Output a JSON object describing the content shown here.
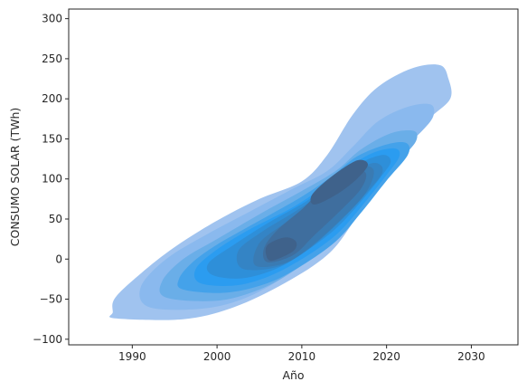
{
  "chart_data": {
    "type": "kde-contour",
    "title": "",
    "xlabel": "Año",
    "ylabel": "CONSUMO SOLAR (TWh)",
    "xlim": [
      1982.5,
      2035.5
    ],
    "ylim": [
      -107,
      312
    ],
    "xticks": [
      1990,
      2000,
      2010,
      2020,
      2030
    ],
    "yticks": [
      -100,
      -50,
      0,
      50,
      100,
      150,
      200,
      250,
      300
    ],
    "grid": false,
    "legend": "none",
    "fill_color": "#1f9bf0",
    "levels": [
      {
        "level": 1,
        "color": "#a0c3ef",
        "outline": [
          [
            1988,
            -74
          ],
          [
            1996,
            -75
          ],
          [
            2002,
            -60
          ],
          [
            2008,
            -30
          ],
          [
            2013,
            5
          ],
          [
            2016,
            45
          ],
          [
            2019,
            95
          ],
          [
            2022,
            140
          ],
          [
            2025,
            175
          ],
          [
            2027.5,
            200
          ],
          [
            2027.3,
            225
          ],
          [
            2026.3,
            242
          ],
          [
            2023,
            238
          ],
          [
            2019,
            215
          ],
          [
            2016,
            180
          ],
          [
            2013,
            130
          ],
          [
            2010,
            97
          ],
          [
            2005,
            75
          ],
          [
            2000,
            48
          ],
          [
            1995,
            15
          ],
          [
            1991,
            -18
          ],
          [
            1988,
            -48
          ],
          [
            1987.7,
            -66
          ]
        ]
      },
      {
        "level": 2,
        "color": "#8ab9ee",
        "outline": [
          [
            1992,
            -60
          ],
          [
            1998,
            -62
          ],
          [
            2003,
            -50
          ],
          [
            2008,
            -22
          ],
          [
            2012,
            10
          ],
          [
            2015,
            45
          ],
          [
            2018,
            88
          ],
          [
            2021,
            128
          ],
          [
            2024,
            158
          ],
          [
            2025.5,
            178
          ],
          [
            2025.2,
            193
          ],
          [
            2022.5,
            190
          ],
          [
            2019,
            172
          ],
          [
            2016,
            140
          ],
          [
            2013,
            110
          ],
          [
            2009,
            88
          ],
          [
            2004,
            60
          ],
          [
            1999,
            32
          ],
          [
            1994,
            0
          ],
          [
            1991,
            -35
          ]
        ]
      },
      {
        "level": 3,
        "color": "#6aaee8",
        "outline": [
          [
            1994,
            -48
          ],
          [
            2000,
            -52
          ],
          [
            2005,
            -38
          ],
          [
            2009,
            -15
          ],
          [
            2013,
            15
          ],
          [
            2016,
            50
          ],
          [
            2019,
            92
          ],
          [
            2022,
            128
          ],
          [
            2023.5,
            148
          ],
          [
            2023.2,
            160
          ],
          [
            2020.5,
            157
          ],
          [
            2017,
            137
          ],
          [
            2014,
            110
          ],
          [
            2010,
            85
          ],
          [
            2005,
            56
          ],
          [
            2000,
            25
          ],
          [
            1996,
            0
          ],
          [
            1993.5,
            -28
          ]
        ]
      },
      {
        "level": 4,
        "color": "#44a2ea",
        "outline": [
          [
            1996,
            -38
          ],
          [
            2001,
            -42
          ],
          [
            2006,
            -30
          ],
          [
            2010,
            -8
          ],
          [
            2014,
            22
          ],
          [
            2017,
            58
          ],
          [
            2020,
            98
          ],
          [
            2022.5,
            130
          ],
          [
            2022.3,
            145
          ],
          [
            2020,
            143
          ],
          [
            2016.5,
            128
          ],
          [
            2013.5,
            103
          ],
          [
            2010,
            78
          ],
          [
            2005,
            48
          ],
          [
            2000,
            18
          ],
          [
            1997,
            -5
          ],
          [
            1995.5,
            -25
          ]
        ]
      },
      {
        "level": 5,
        "color": "#2b9cf0",
        "outline": [
          [
            1998,
            -30
          ],
          [
            2002,
            -33
          ],
          [
            2006,
            -22
          ],
          [
            2010,
            0
          ],
          [
            2014,
            30
          ],
          [
            2017,
            65
          ],
          [
            2020,
            105
          ],
          [
            2021.5,
            128
          ],
          [
            2021,
            138
          ],
          [
            2018.5,
            133
          ],
          [
            2015.5,
            115
          ],
          [
            2012.5,
            90
          ],
          [
            2009,
            65
          ],
          [
            2004,
            38
          ],
          [
            2000,
            12
          ],
          [
            1997.5,
            -12
          ]
        ]
      },
      {
        "level": 6,
        "color": "#2e8fd9",
        "outline": [
          [
            1999.5,
            -20
          ],
          [
            2003,
            -24
          ],
          [
            2007,
            -12
          ],
          [
            2010.5,
            10
          ],
          [
            2014,
            38
          ],
          [
            2017,
            72
          ],
          [
            2019.5,
            105
          ],
          [
            2020.5,
            122
          ],
          [
            2019.5,
            130
          ],
          [
            2016.5,
            118
          ],
          [
            2013.5,
            95
          ],
          [
            2010.5,
            72
          ],
          [
            2006,
            45
          ],
          [
            2002,
            18
          ],
          [
            1999,
            -5
          ]
        ]
      },
      {
        "level": 7,
        "color": "#3484c5",
        "outline": [
          [
            2003,
            -12
          ],
          [
            2007,
            -10
          ],
          [
            2010.5,
            10
          ],
          [
            2014,
            42
          ],
          [
            2017,
            75
          ],
          [
            2019.5,
            108
          ],
          [
            2018.5,
            120
          ],
          [
            2015.5,
            105
          ],
          [
            2012.5,
            82
          ],
          [
            2009,
            58
          ],
          [
            2005,
            32
          ],
          [
            2002.5,
            10
          ]
        ]
      },
      {
        "level": 8,
        "color": "#3a7bb3",
        "outline": [
          [
            2004.5,
            -8
          ],
          [
            2008,
            -5
          ],
          [
            2011,
            15
          ],
          [
            2014.5,
            48
          ],
          [
            2017.5,
            82
          ],
          [
            2018.5,
            110
          ],
          [
            2017,
            115
          ],
          [
            2014,
            95
          ],
          [
            2011,
            70
          ],
          [
            2008,
            45
          ],
          [
            2005,
            20
          ]
        ]
      },
      {
        "level": 9,
        "color": "#3f6e9e",
        "outline": [
          [
            2006,
            -4
          ],
          [
            2009,
            5
          ],
          [
            2011.5,
            30
          ],
          [
            2014.5,
            60
          ],
          [
            2017,
            88
          ],
          [
            2017.5,
            108
          ],
          [
            2015.5,
            108
          ],
          [
            2012.5,
            88
          ],
          [
            2010,
            62
          ],
          [
            2007,
            35
          ],
          [
            2005.5,
            12
          ]
        ]
      },
      {
        "level": 10,
        "color": "#3f628b",
        "outline": [
          [
            2006.5,
            -2
          ],
          [
            2009,
            10
          ],
          [
            2009.3,
            22
          ],
          [
            2008,
            27
          ],
          [
            2006,
            18
          ],
          [
            2005.8,
            5
          ]
        ]
      },
      {
        "level": 11,
        "color": "#3f628b",
        "outline": [
          [
            2011.5,
            68
          ],
          [
            2014,
            80
          ],
          [
            2016.5,
            100
          ],
          [
            2017.8,
            118
          ],
          [
            2016.5,
            123
          ],
          [
            2013.5,
            103
          ],
          [
            2011.2,
            80
          ]
        ]
      }
    ]
  }
}
